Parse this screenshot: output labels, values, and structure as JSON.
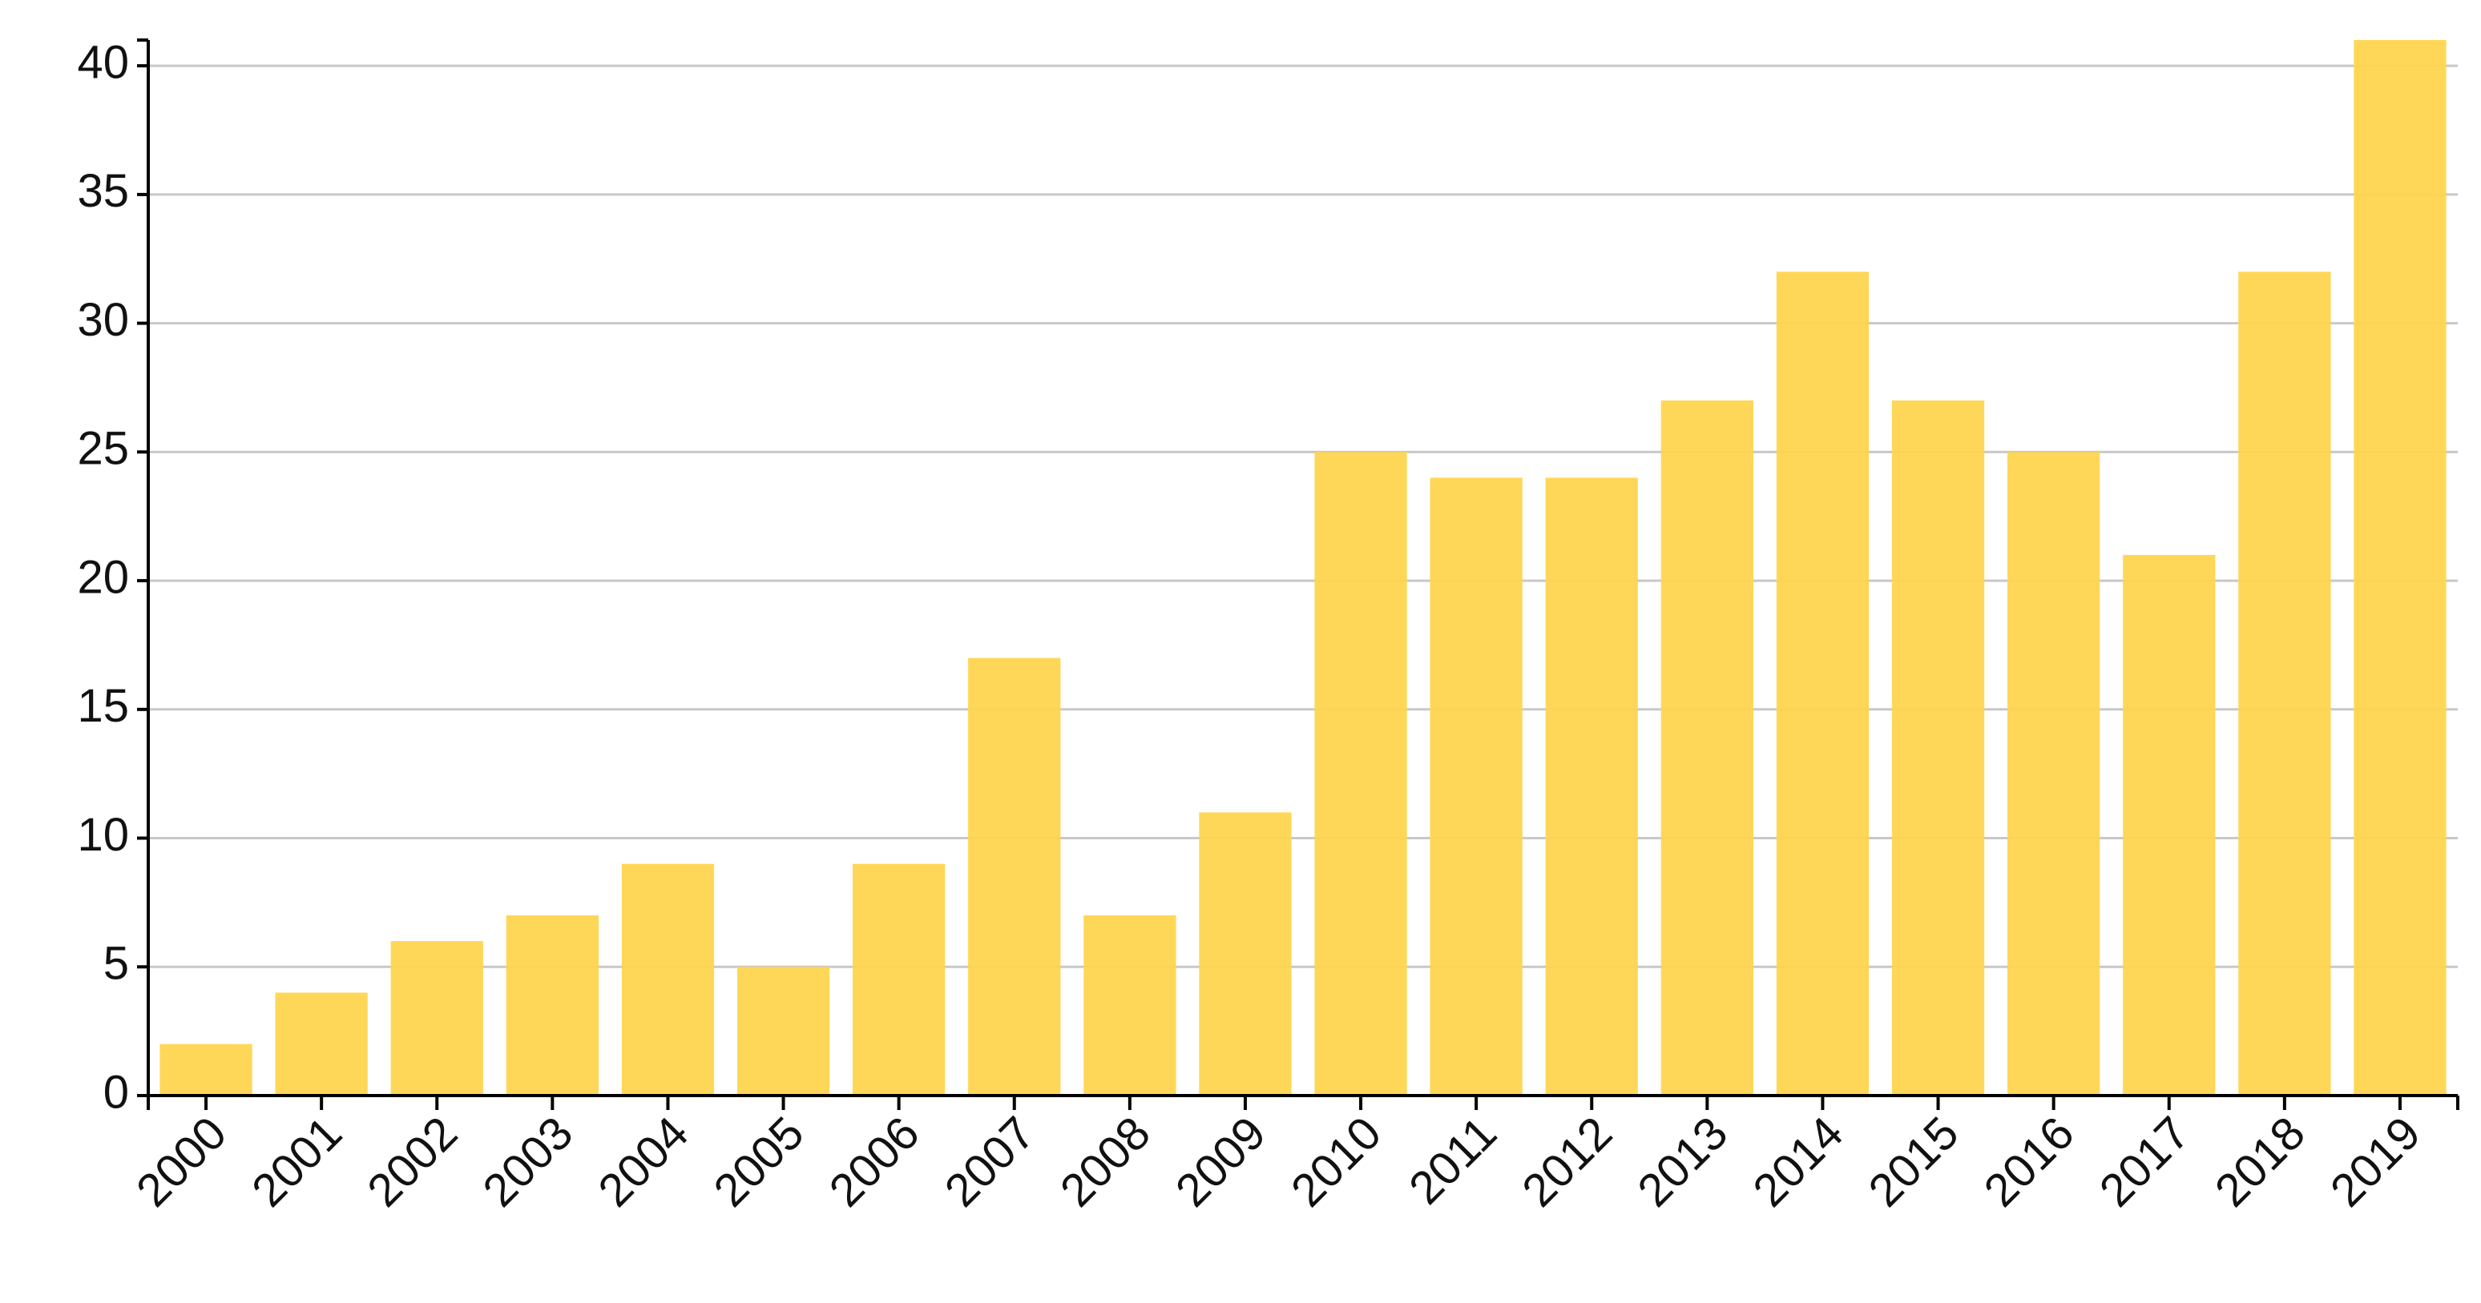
{
  "chart_data": {
    "type": "bar",
    "categories": [
      "2000",
      "2001",
      "2002",
      "2003",
      "2004",
      "2005",
      "2006",
      "2007",
      "2008",
      "2009",
      "2010",
      "2011",
      "2012",
      "2013",
      "2014",
      "2015",
      "2016",
      "2017",
      "2018",
      "2019"
    ],
    "values": [
      2,
      4,
      6,
      7,
      9,
      5,
      9,
      17,
      7,
      11,
      25,
      24,
      24,
      27,
      32,
      27,
      25,
      21,
      32,
      41
    ],
    "color": "#ffd54f",
    "ylim": [
      0,
      41
    ],
    "yticks": [
      0,
      5,
      10,
      15,
      20,
      25,
      30,
      35,
      40
    ],
    "grid": true
  }
}
